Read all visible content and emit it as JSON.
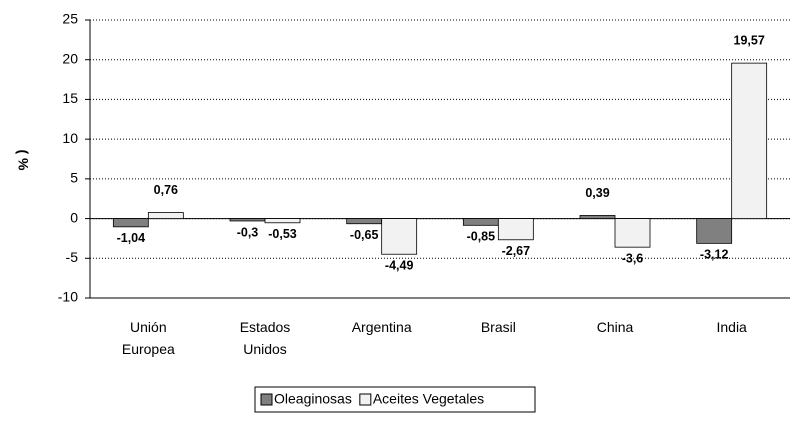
{
  "chart_data": {
    "type": "bar",
    "y_label": "( %",
    "categories": [
      "Unión Europea",
      "Estados Unidos",
      "Argentina",
      "Brasil",
      "China",
      "India"
    ],
    "series": [
      {
        "name": "Oleaginosas",
        "color": "#808080",
        "values": [
          -1.04,
          -0.3,
          -0.65,
          -0.85,
          0.39,
          -3.12
        ],
        "value_labels": [
          "-1,04",
          "-0,3",
          "-0,65",
          "-0,85",
          "0,39",
          "-3,12"
        ]
      },
      {
        "name": "Aceites Vegetales",
        "color": "#f2f2f2",
        "values": [
          0.76,
          -0.53,
          -4.49,
          -2.67,
          -3.6,
          19.57
        ],
        "value_labels": [
          "0,76",
          "-0,53",
          "-4,49",
          "-2,67",
          "-3,6",
          "19,57"
        ]
      }
    ],
    "ylim": [
      -10,
      25
    ],
    "yticks": [
      -10,
      -5,
      0,
      5,
      10,
      15,
      20,
      25
    ],
    "grid": true,
    "legend": "bottom"
  }
}
